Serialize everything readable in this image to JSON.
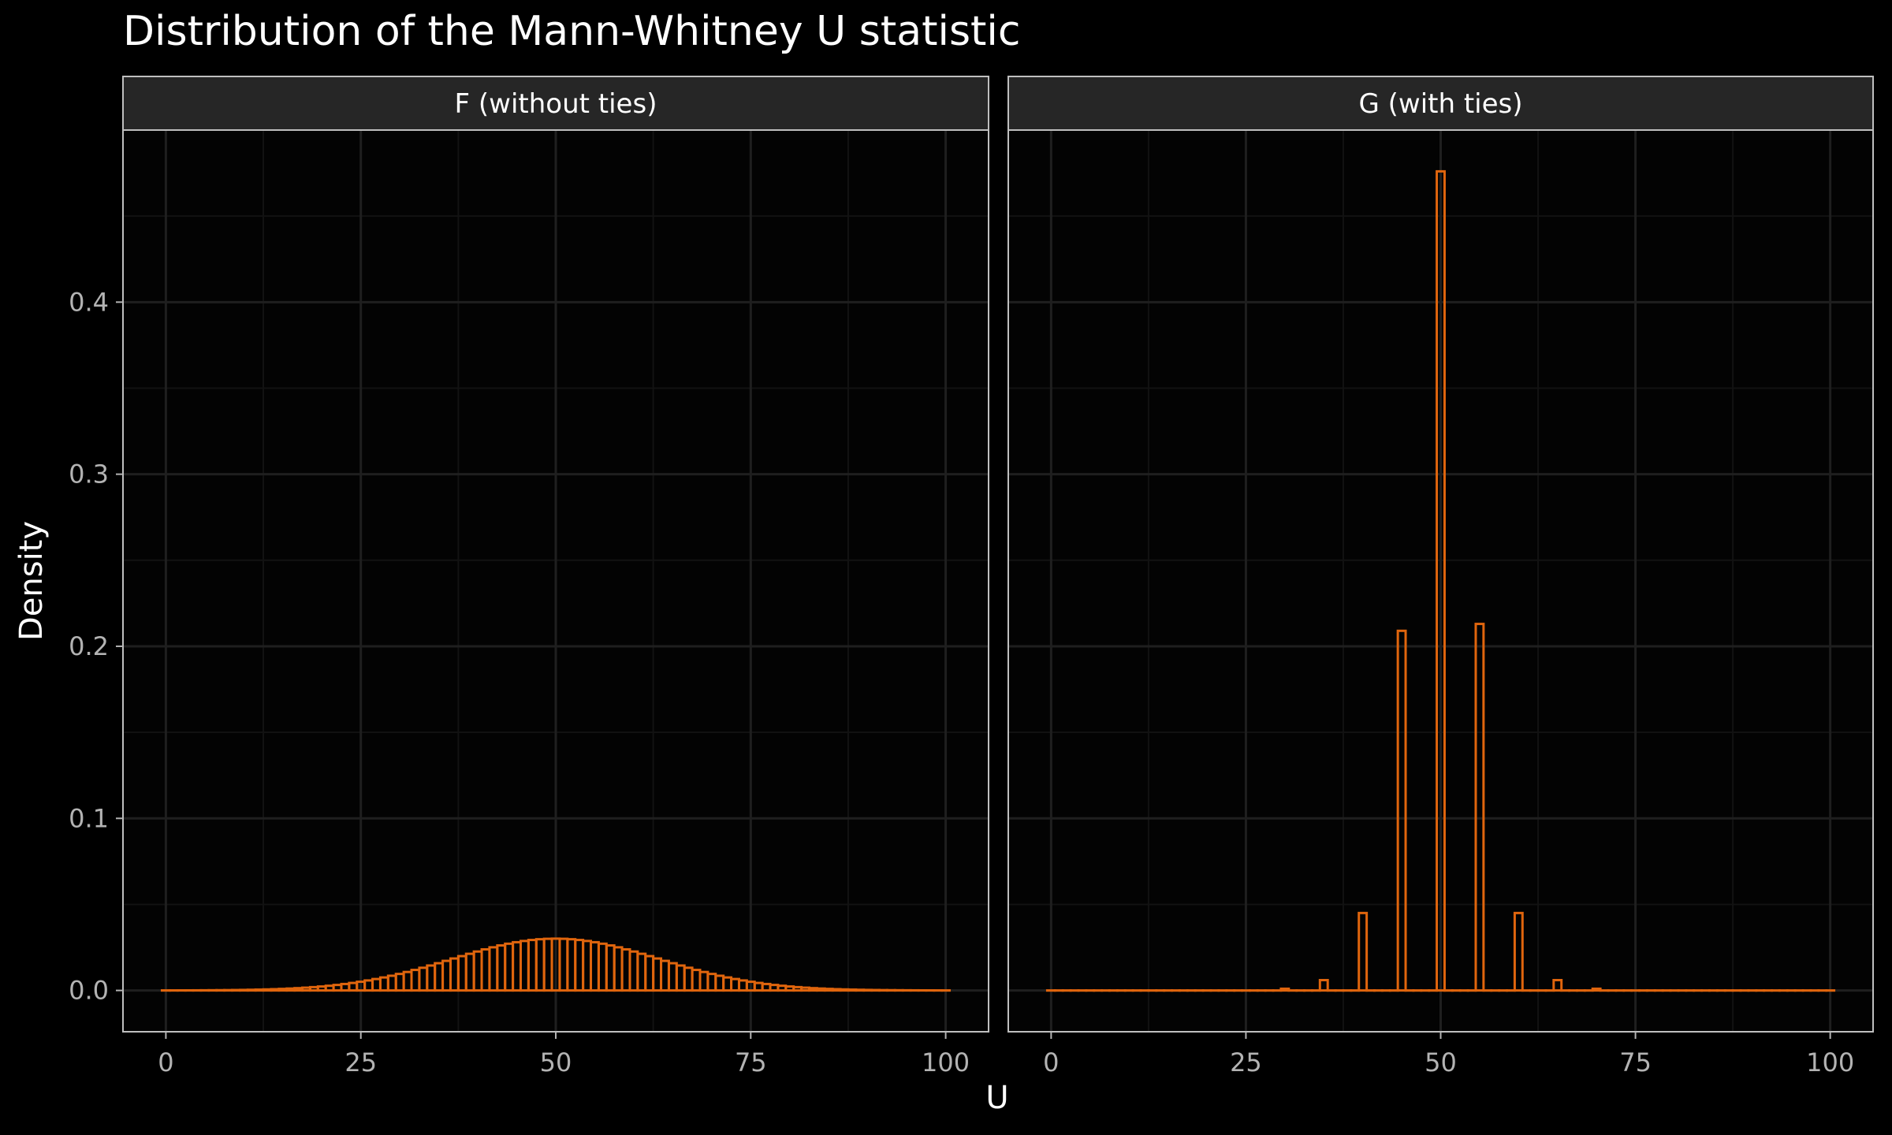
{
  "title": "Distribution of the Mann-Whitney U statistic",
  "colors": {
    "background": "#000000",
    "panel_background": "#030303",
    "strip_background": "#262626",
    "border": "#bfbfbf",
    "grid_major": "#1f1f1f",
    "grid_minor": "#121212",
    "bar_outline": "#e0650d",
    "title_text": "#ffffff",
    "axis_title_text": "#ffffff",
    "tick_text": "#b3b3b3",
    "strip_text": "#ffffff"
  },
  "chart_data": {
    "type": "bar",
    "title": "Distribution of the Mann-Whitney U statistic",
    "xlabel": "U",
    "ylabel": "Density",
    "xlim": [
      -5.5,
      105.5
    ],
    "ylim": [
      -0.024,
      0.5
    ],
    "x_ticks": [
      0,
      25,
      50,
      75,
      100
    ],
    "x_tick_labels": [
      "0",
      "25",
      "50",
      "75",
      "100"
    ],
    "y_ticks": [
      0.0,
      0.1,
      0.2,
      0.3,
      0.4
    ],
    "y_tick_labels": [
      "0.0",
      "0.1",
      "0.2",
      "0.3",
      "0.4"
    ],
    "grid": true,
    "bar_style": "outline",
    "facets": [
      {
        "label": "F (without ties)",
        "bins": {
          "start": 0,
          "end": 100,
          "width": 1,
          "distribution": "normal",
          "mean": 50,
          "sd": 13.229,
          "peak_density": 0.0301
        }
      },
      {
        "label": "G (with ties)",
        "bins": {
          "start": 0,
          "end": 100,
          "width": 1,
          "nonzero": [
            {
              "x": 30,
              "density": 0.001
            },
            {
              "x": 35,
              "density": 0.006
            },
            {
              "x": 40,
              "density": 0.045
            },
            {
              "x": 45,
              "density": 0.209
            },
            {
              "x": 50,
              "density": 0.476
            },
            {
              "x": 55,
              "density": 0.213
            },
            {
              "x": 60,
              "density": 0.045
            },
            {
              "x": 65,
              "density": 0.006
            },
            {
              "x": 70,
              "density": 0.001
            }
          ]
        }
      }
    ]
  }
}
